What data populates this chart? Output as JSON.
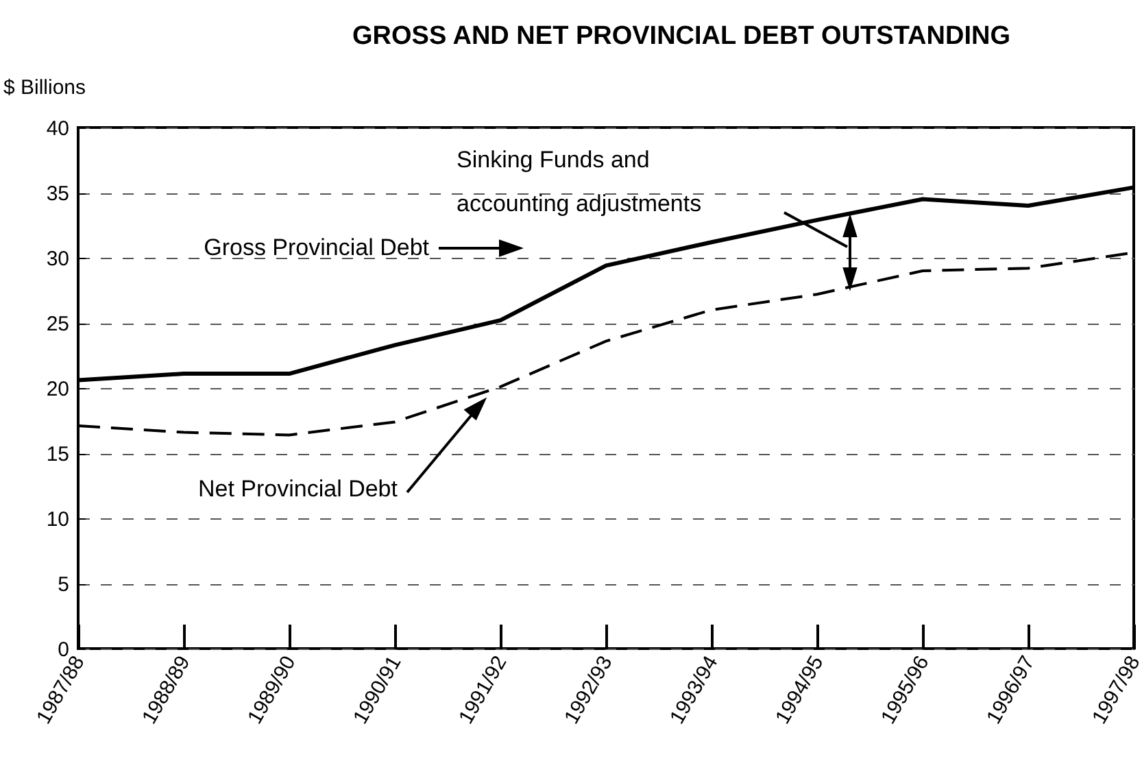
{
  "chart_data": {
    "type": "line",
    "title": "GROSS AND NET PROVINCIAL DEBT OUTSTANDING",
    "ylabel": "$ Billions",
    "categories": [
      "1987/88",
      "1988/89",
      "1989/90",
      "1990/91",
      "1991/92",
      "1992/93",
      "1993/94",
      "1994/95",
      "1995/96",
      "1996/97",
      "1997/98"
    ],
    "series": [
      {
        "name": "Gross Provincial Debt",
        "color": "#000000",
        "line_style": "solid",
        "values": [
          20.6,
          21.1,
          21.1,
          23.3,
          25.2,
          29.4,
          31.2,
          32.9,
          34.5,
          34.0,
          35.4
        ]
      },
      {
        "name": "Net Provincial Debt",
        "color": "#000000",
        "line_style": "dashed",
        "values": [
          17.1,
          16.6,
          16.4,
          17.4,
          20.1,
          23.6,
          26.0,
          27.2,
          29.0,
          29.2,
          30.4
        ]
      }
    ],
    "annotations": [
      "Sinking Funds and accounting adjustments"
    ],
    "ylim": [
      0,
      40
    ],
    "yticks": [
      0,
      5,
      10,
      15,
      20,
      25,
      30,
      35,
      40
    ],
    "grid": "y",
    "marker": "none"
  }
}
